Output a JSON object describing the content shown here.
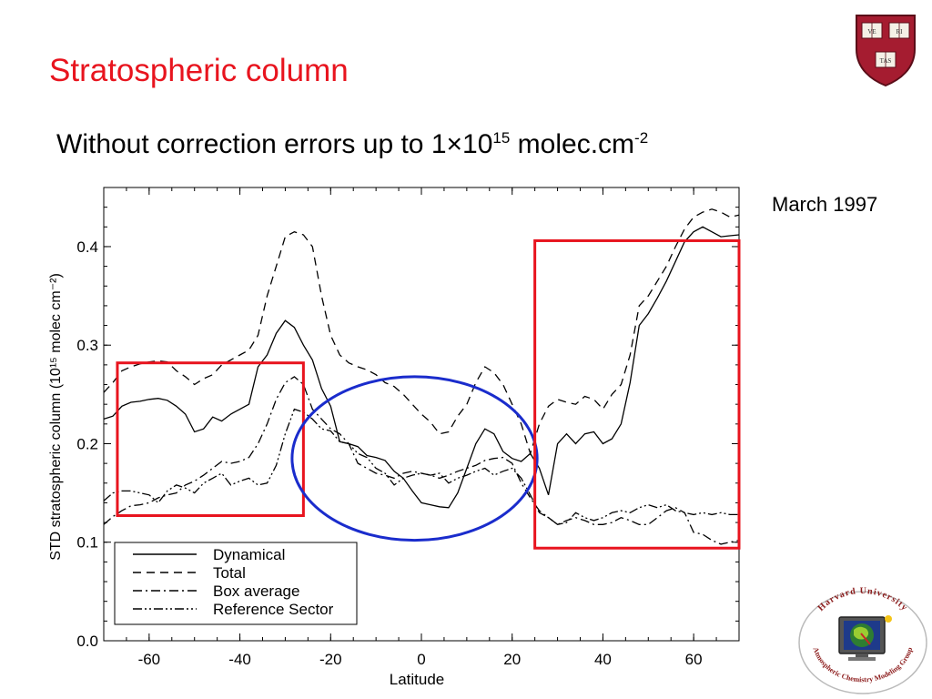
{
  "slide": {
    "title": "Stratospheric column",
    "subtitle_main": "Without correction errors up to 1",
    "subtitle_times": "×",
    "subtitle_base": "10",
    "subtitle_exp": "15",
    "subtitle_unit": " molec.cm",
    "subtitle_unit_exp": "-2",
    "date_label": "March 1997"
  },
  "logos": {
    "shield_text": [
      "VE",
      "RI",
      "TAS"
    ],
    "acmg_top": "Harvard University",
    "acmg_bottom": "Atmospheric Chemistry Modeling Group",
    "colors": {
      "shield": "#a51c30",
      "ring": "#8b1a1a"
    }
  },
  "chart_data": {
    "type": "line",
    "title": "",
    "xlabel": "Latitude",
    "ylabel": "STD stratospheric column (10¹⁵ molec cm⁻²)",
    "xlim": [
      -70,
      70
    ],
    "ylim": [
      0,
      0.46
    ],
    "xticks": [
      -60,
      -40,
      -20,
      0,
      20,
      40,
      60
    ],
    "yticks": [
      0.0,
      0.1,
      0.2,
      0.3,
      0.4
    ],
    "xtick_labels": [
      "-60",
      "-40",
      "-20",
      "0",
      "20",
      "40",
      "60"
    ],
    "ytick_labels": [
      "0.0",
      "0.1",
      "0.2",
      "0.3",
      "0.4"
    ],
    "grid": false,
    "legend_position": "bottom-left",
    "series": [
      {
        "name": "Dynamical",
        "style": "solid",
        "x": [
          -70,
          -68,
          -66,
          -64,
          -62,
          -60,
          -58,
          -56,
          -54,
          -52,
          -50,
          -48,
          -46,
          -44,
          -42,
          -40,
          -38,
          -36,
          -34,
          -32,
          -30,
          -28,
          -26,
          -24,
          -22,
          -20,
          -18,
          -16,
          -14,
          -12,
          -10,
          -8,
          -6,
          -4,
          -2,
          0,
          2,
          4,
          6,
          8,
          10,
          12,
          14,
          16,
          18,
          20,
          22,
          24,
          26,
          28,
          30,
          32,
          34,
          36,
          38,
          40,
          42,
          44,
          46,
          48,
          50,
          52,
          54,
          56,
          58,
          60,
          62,
          64,
          66,
          68,
          70
        ],
        "y": [
          0.225,
          0.228,
          0.238,
          0.242,
          0.243,
          0.245,
          0.246,
          0.244,
          0.238,
          0.23,
          0.212,
          0.215,
          0.227,
          0.223,
          0.23,
          0.235,
          0.24,
          0.278,
          0.29,
          0.312,
          0.325,
          0.318,
          0.3,
          0.285,
          0.256,
          0.238,
          0.202,
          0.2,
          0.197,
          0.188,
          0.186,
          0.183,
          0.172,
          0.165,
          0.152,
          0.14,
          0.138,
          0.136,
          0.135,
          0.15,
          0.175,
          0.2,
          0.215,
          0.21,
          0.192,
          0.185,
          0.182,
          0.19,
          0.175,
          0.148,
          0.2,
          0.21,
          0.2,
          0.21,
          0.212,
          0.2,
          0.205,
          0.22,
          0.262,
          0.32,
          0.332,
          0.348,
          0.365,
          0.385,
          0.405,
          0.415,
          0.42,
          0.415,
          0.41,
          0.411,
          0.412
        ]
      },
      {
        "name": "Total",
        "style": "dashed",
        "x": [
          -70,
          -68,
          -66,
          -64,
          -62,
          -60,
          -58,
          -56,
          -54,
          -52,
          -50,
          -48,
          -46,
          -44,
          -42,
          -40,
          -38,
          -36,
          -34,
          -32,
          -30,
          -28,
          -26,
          -24,
          -22,
          -20,
          -18,
          -16,
          -14,
          -12,
          -10,
          -8,
          -6,
          -4,
          -2,
          0,
          2,
          4,
          6,
          8,
          10,
          12,
          14,
          16,
          18,
          20,
          22,
          24,
          26,
          28,
          30,
          32,
          34,
          36,
          38,
          40,
          42,
          44,
          46,
          48,
          50,
          52,
          54,
          56,
          58,
          60,
          62,
          64,
          66,
          68,
          70
        ],
        "y": [
          0.252,
          0.262,
          0.274,
          0.278,
          0.281,
          0.283,
          0.284,
          0.283,
          0.274,
          0.268,
          0.26,
          0.266,
          0.27,
          0.28,
          0.285,
          0.29,
          0.295,
          0.31,
          0.35,
          0.38,
          0.41,
          0.415,
          0.412,
          0.4,
          0.35,
          0.31,
          0.29,
          0.282,
          0.278,
          0.275,
          0.27,
          0.262,
          0.258,
          0.25,
          0.24,
          0.23,
          0.222,
          0.21,
          0.212,
          0.228,
          0.24,
          0.262,
          0.278,
          0.272,
          0.26,
          0.24,
          0.22,
          0.19,
          0.22,
          0.238,
          0.245,
          0.242,
          0.24,
          0.248,
          0.245,
          0.235,
          0.25,
          0.26,
          0.29,
          0.34,
          0.35,
          0.365,
          0.38,
          0.4,
          0.418,
          0.43,
          0.435,
          0.438,
          0.435,
          0.43,
          0.432
        ]
      },
      {
        "name": "Box average",
        "style": "dashdot",
        "x": [
          -70,
          -68,
          -66,
          -64,
          -62,
          -60,
          -58,
          -56,
          -54,
          -52,
          -50,
          -48,
          -46,
          -44,
          -42,
          -40,
          -38,
          -36,
          -34,
          -32,
          -30,
          -28,
          -26,
          -24,
          -22,
          -20,
          -18,
          -16,
          -14,
          -12,
          -10,
          -8,
          -6,
          -4,
          -2,
          0,
          2,
          4,
          6,
          8,
          10,
          12,
          14,
          16,
          18,
          20,
          22,
          24,
          26,
          28,
          30,
          32,
          34,
          36,
          38,
          40,
          42,
          44,
          46,
          48,
          50,
          52,
          54,
          56,
          58,
          60,
          62,
          64,
          66,
          68,
          70
        ],
        "y": [
          0.118,
          0.126,
          0.132,
          0.137,
          0.138,
          0.14,
          0.145,
          0.148,
          0.15,
          0.158,
          0.162,
          0.168,
          0.175,
          0.182,
          0.18,
          0.182,
          0.186,
          0.2,
          0.22,
          0.245,
          0.262,
          0.268,
          0.26,
          0.235,
          0.225,
          0.215,
          0.21,
          0.2,
          0.18,
          0.175,
          0.17,
          0.168,
          0.165,
          0.17,
          0.172,
          0.17,
          0.168,
          0.165,
          0.168,
          0.172,
          0.175,
          0.178,
          0.183,
          0.185,
          0.186,
          0.18,
          0.16,
          0.145,
          0.132,
          0.125,
          0.118,
          0.122,
          0.125,
          0.122,
          0.118,
          0.118,
          0.12,
          0.125,
          0.122,
          0.118,
          0.118,
          0.125,
          0.132,
          0.135,
          0.13,
          0.11,
          0.108,
          0.102,
          0.098,
          0.1,
          0.102
        ]
      },
      {
        "name": "Reference Sector",
        "style": "dashdotdot",
        "x": [
          -70,
          -68,
          -66,
          -64,
          -62,
          -60,
          -58,
          -56,
          -54,
          -52,
          -50,
          -48,
          -46,
          -44,
          -42,
          -40,
          -38,
          -36,
          -34,
          -32,
          -30,
          -28,
          -26,
          -24,
          -22,
          -20,
          -18,
          -16,
          -14,
          -12,
          -10,
          -8,
          -6,
          -4,
          -2,
          0,
          2,
          4,
          6,
          8,
          10,
          12,
          14,
          16,
          18,
          20,
          22,
          24,
          26,
          28,
          30,
          32,
          34,
          36,
          38,
          40,
          42,
          44,
          46,
          48,
          50,
          52,
          54,
          56,
          58,
          60,
          62,
          64,
          66,
          68,
          70
        ],
        "y": [
          0.142,
          0.15,
          0.152,
          0.152,
          0.15,
          0.148,
          0.14,
          0.152,
          0.158,
          0.155,
          0.15,
          0.16,
          0.165,
          0.17,
          0.158,
          0.162,
          0.165,
          0.158,
          0.16,
          0.178,
          0.21,
          0.235,
          0.232,
          0.225,
          0.215,
          0.213,
          0.202,
          0.2,
          0.19,
          0.186,
          0.175,
          0.17,
          0.158,
          0.165,
          0.168,
          0.17,
          0.168,
          0.17,
          0.16,
          0.165,
          0.168,
          0.172,
          0.175,
          0.168,
          0.172,
          0.175,
          0.165,
          0.148,
          0.13,
          0.125,
          0.118,
          0.12,
          0.13,
          0.125,
          0.122,
          0.125,
          0.13,
          0.132,
          0.13,
          0.135,
          0.138,
          0.135,
          0.138,
          0.132,
          0.13,
          0.128,
          0.13,
          0.128,
          0.13,
          0.128,
          0.128
        ]
      }
    ],
    "annotations": [
      {
        "shape": "rectangle",
        "color": "#e8141e",
        "x": [
          -67,
          -26
        ],
        "y": [
          0.127,
          0.282
        ]
      },
      {
        "shape": "ellipse",
        "color": "#1a2ccc",
        "center": [
          -1.5,
          0.185
        ],
        "radius": [
          27,
          0.083
        ]
      },
      {
        "shape": "rectangle",
        "color": "#e8141e",
        "x": [
          25,
          70
        ],
        "y": [
          0.094,
          0.406
        ]
      }
    ]
  }
}
